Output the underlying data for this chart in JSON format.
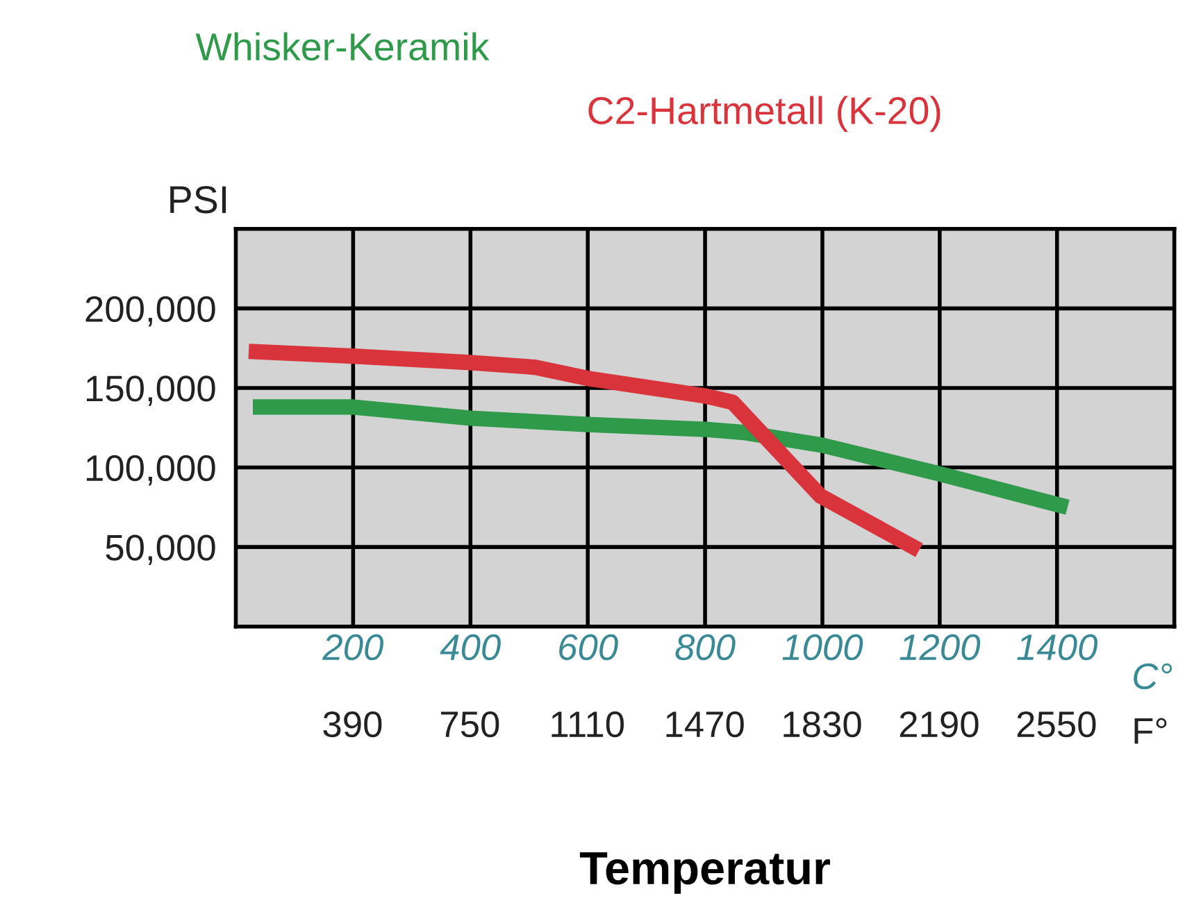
{
  "chart_data": {
    "type": "line",
    "xlabel": "Temperatur",
    "ylabel": "PSI",
    "series": [
      {
        "name": "Whisker-Keramik",
        "color": "#2e9a4a",
        "x": [
          29,
          200,
          400,
          600,
          800,
          866,
          1000,
          1200,
          1418
        ],
        "values": [
          138000,
          138000,
          131000,
          127000,
          124000,
          122000,
          114000,
          96000,
          75000
        ]
      },
      {
        "name": "C2-Hartmetall (K-20)",
        "color": "#d9333c",
        "x": [
          22,
          200,
          400,
          510,
          600,
          800,
          847,
          997,
          1165
        ],
        "values": [
          173000,
          170000,
          166000,
          163000,
          156000,
          145000,
          141000,
          82000,
          48000
        ]
      }
    ],
    "xlim": [
      0,
      1600
    ],
    "xticks": [
      200,
      400,
      600,
      800,
      1000,
      1200,
      1400
    ],
    "x2lim": [
      32,
      2912
    ],
    "x2ticks": [
      390,
      750,
      1110,
      1470,
      1830,
      2190,
      2550
    ],
    "ylim": [
      0,
      250000
    ],
    "yticks": [
      {
        "value": 50000,
        "label": "50,000"
      },
      {
        "value": 100000,
        "label": "100,000"
      },
      {
        "value": 150000,
        "label": "150,000"
      },
      {
        "value": 200000,
        "label": "200,000"
      }
    ],
    "grid": true,
    "legend": false,
    "marker": "none",
    "line_style": "solid",
    "annotations": [
      "C°",
      "F°"
    ]
  }
}
